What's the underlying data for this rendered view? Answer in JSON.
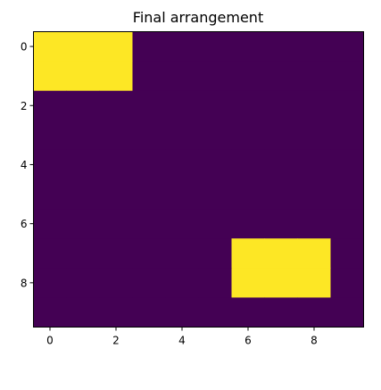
{
  "chart_data": {
    "type": "heatmap",
    "title": "Final arrangement",
    "xlabel": "",
    "ylabel": "",
    "grid": false,
    "colormap": "viridis",
    "colors": {
      "low": "#440154",
      "high": "#fde725"
    },
    "x_ticks": [
      "0",
      "2",
      "4",
      "6",
      "8"
    ],
    "y_ticks": [
      "0",
      "2",
      "4",
      "6",
      "8"
    ],
    "matrix": [
      [
        1,
        1,
        1,
        0,
        0,
        0,
        0,
        0,
        0,
        0
      ],
      [
        1,
        1,
        1,
        0,
        0,
        0,
        0,
        0,
        0,
        0
      ],
      [
        0,
        0,
        0,
        0,
        0,
        0,
        0,
        0,
        0,
        0
      ],
      [
        0,
        0,
        0,
        0,
        0,
        0,
        0,
        0,
        0,
        0
      ],
      [
        0,
        0,
        0,
        0,
        0,
        0,
        0,
        0,
        0,
        0
      ],
      [
        0,
        0,
        0,
        0,
        0,
        0,
        0,
        0,
        0,
        0
      ],
      [
        0,
        0,
        0,
        0,
        0,
        0,
        0,
        0,
        0,
        0
      ],
      [
        0,
        0,
        0,
        0,
        0,
        0,
        1,
        1,
        1,
        0
      ],
      [
        0,
        0,
        0,
        0,
        0,
        0,
        1,
        1,
        1,
        0
      ],
      [
        0,
        0,
        0,
        0,
        0,
        0,
        0,
        0,
        0,
        0
      ]
    ]
  }
}
